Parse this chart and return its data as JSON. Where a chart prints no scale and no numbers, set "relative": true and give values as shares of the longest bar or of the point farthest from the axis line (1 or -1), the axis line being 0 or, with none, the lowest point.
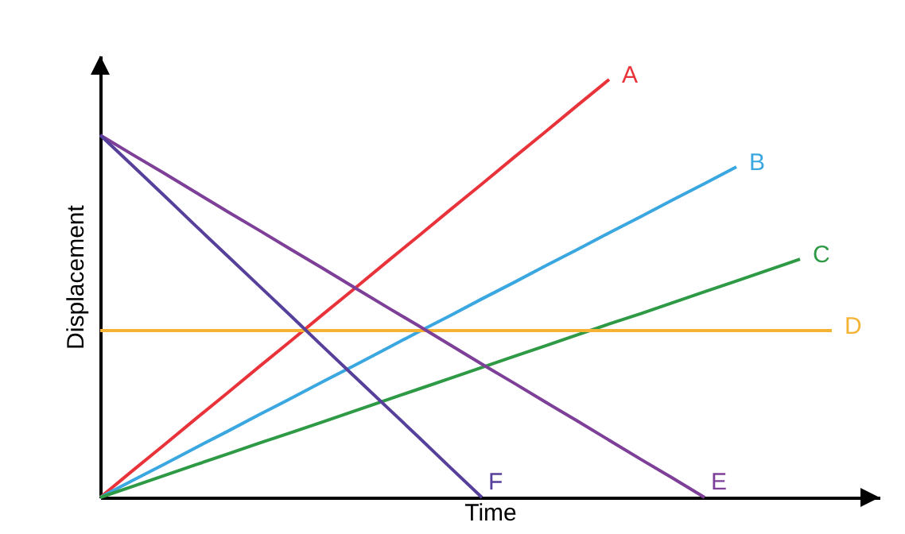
{
  "chart_data": {
    "type": "line",
    "relative": true,
    "xlabel": "Time",
    "ylabel": "Displacement",
    "line_style": "solid",
    "categories": [
      null,
      null,
      null,
      null,
      null,
      null,
      null,
      null,
      null,
      null,
      null,
      null,
      null,
      null,
      null,
      null,
      null,
      null,
      null,
      null,
      null,
      null,
      null,
      null
    ],
    "series": [
      {
        "name": "A",
        "color": "#e8333b",
        "values": [
          0,
          0.063,
          0.125,
          0.188,
          0.25,
          0.313,
          0.375,
          0.438,
          0.5,
          0.563,
          0.625,
          0.688,
          0.75,
          0.813,
          0.875,
          0.938,
          1,
          null,
          null,
          null,
          null,
          null,
          null,
          null
        ]
      },
      {
        "name": "B",
        "color": "#3ba7e1",
        "values": [
          0,
          0.04,
          0.079,
          0.119,
          0.158,
          0.198,
          0.237,
          0.277,
          0.316,
          0.356,
          0.396,
          0.435,
          0.475,
          0.514,
          0.554,
          0.593,
          0.633,
          0.672,
          0.712,
          0.751,
          0.791,
          null,
          null,
          null
        ]
      },
      {
        "name": "C",
        "color": "#2e9a45",
        "values": [
          0,
          0.026,
          0.052,
          0.078,
          0.104,
          0.13,
          0.155,
          0.181,
          0.207,
          0.233,
          0.259,
          0.285,
          0.311,
          0.337,
          0.363,
          0.389,
          0.415,
          0.44,
          0.466,
          0.492,
          0.518,
          0.544,
          0.57,
          null
        ]
      },
      {
        "name": "D",
        "color": "#f5b335",
        "values": [
          0.399,
          0.399,
          0.399,
          0.399,
          0.399,
          0.399,
          0.399,
          0.399,
          0.399,
          0.399,
          0.399,
          0.399,
          0.399,
          0.399,
          0.399,
          0.399,
          0.399,
          0.399,
          0.399,
          0.399,
          0.399,
          0.399,
          0.399,
          0.399
        ]
      },
      {
        "name": "E",
        "color": "#7e3f98",
        "values": [
          0.867,
          0.821,
          0.776,
          0.73,
          0.684,
          0.639,
          0.593,
          0.548,
          0.502,
          0.456,
          0.411,
          0.365,
          0.319,
          0.274,
          0.228,
          0.183,
          0.137,
          0.091,
          0.046,
          0,
          null,
          null,
          null,
          null
        ]
      },
      {
        "name": "F",
        "color": "#56409b",
        "values": [
          0.867,
          0.795,
          0.723,
          0.65,
          0.578,
          0.506,
          0.434,
          0.361,
          0.289,
          0.217,
          0.145,
          0.072,
          0,
          null,
          null,
          null,
          null,
          null,
          null,
          null,
          null,
          null,
          null,
          null
        ]
      }
    ]
  }
}
